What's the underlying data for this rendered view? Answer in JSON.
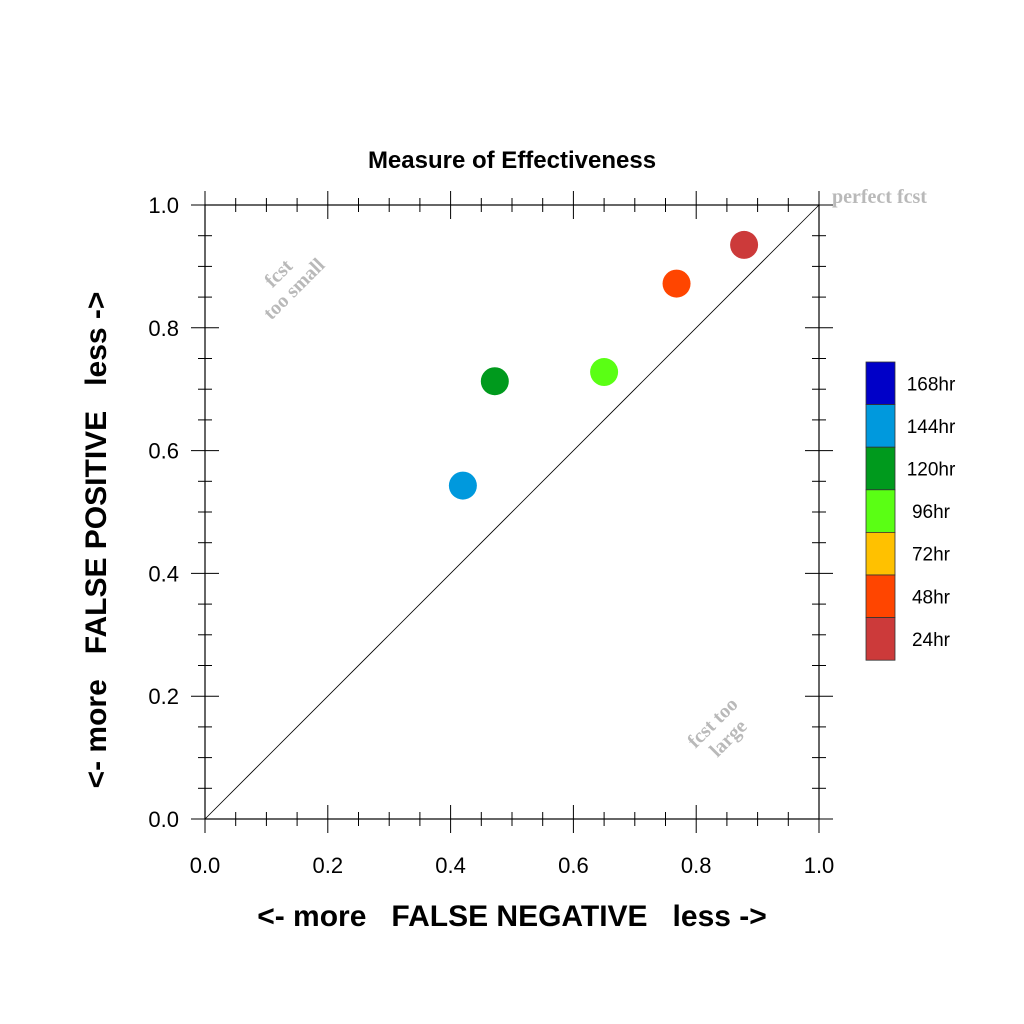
{
  "chart_data": {
    "type": "scatter",
    "title": "Measure of Effectiveness",
    "xlabel": "<- more   FALSE NEGATIVE   less ->",
    "ylabel": "<- more   FALSE POSITIVE   less ->",
    "xlim": [
      0.0,
      1.0
    ],
    "ylim": [
      0.0,
      1.0
    ],
    "xticks": [
      "0.0",
      "0.2",
      "0.4",
      "0.6",
      "0.8",
      "1.0"
    ],
    "yticks": [
      "0.0",
      "0.2",
      "0.4",
      "0.6",
      "0.8",
      "1.0"
    ],
    "grid": false,
    "reference_line": "diagonal y = x",
    "annotations": {
      "perfect": "perfect fcst",
      "too_small_line1": "fcst",
      "too_small_line2": "too small",
      "too_large_line1": "fcst too",
      "too_large_line2": "large"
    },
    "points": [
      {
        "x": 0.42,
        "y": 0.543,
        "color": "#0099dd",
        "label": "144hr"
      },
      {
        "x": 0.472,
        "y": 0.713,
        "color": "#009a1d",
        "label": "120hr"
      },
      {
        "x": 0.65,
        "y": 0.728,
        "color": "#5aff14",
        "label": "96hr"
      },
      {
        "x": 0.768,
        "y": 0.872,
        "color": "#ff4500",
        "label": "48hr"
      },
      {
        "x": 0.878,
        "y": 0.935,
        "color": "#cc3a3a",
        "label": "24hr"
      }
    ],
    "legend": {
      "placement": "right",
      "entries": [
        {
          "label": "168hr",
          "color": "#0000c8"
        },
        {
          "label": "144hr",
          "color": "#0099dd"
        },
        {
          "label": "120hr",
          "color": "#009a1d"
        },
        {
          "label": "96hr",
          "color": "#5aff14"
        },
        {
          "label": "72hr",
          "color": "#ffc100"
        },
        {
          "label": "48hr",
          "color": "#ff4500"
        },
        {
          "label": "24hr",
          "color": "#cc3a3a"
        }
      ]
    }
  }
}
